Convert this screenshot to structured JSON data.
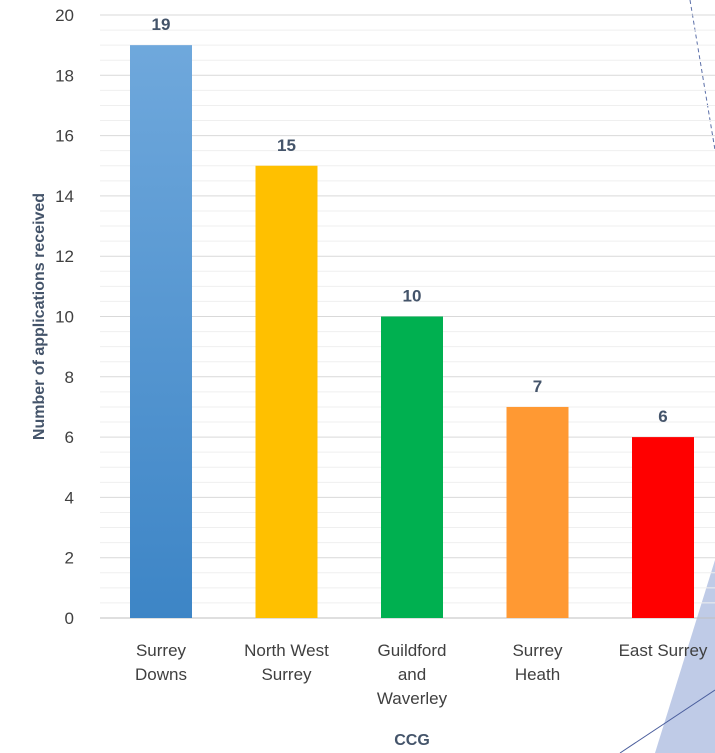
{
  "chart_data": {
    "type": "bar",
    "categories": [
      [
        "Surrey",
        "Downs"
      ],
      [
        "North West",
        "Surrey"
      ],
      [
        "Guildford",
        "and",
        "Waverley"
      ],
      [
        "Surrey",
        "Heath"
      ],
      [
        "East Surrey"
      ]
    ],
    "values": [
      19,
      15,
      10,
      7,
      6
    ],
    "data_labels": [
      "19",
      "15",
      "10",
      "7",
      "6"
    ],
    "xlabel": "CCG",
    "ylabel": "Number of applications received",
    "ylim": [
      0,
      20
    ],
    "yticks": [
      0,
      2,
      4,
      6,
      8,
      10,
      12,
      14,
      16,
      18,
      20
    ],
    "grid": true,
    "legend": "none",
    "bar_colors": [
      "#5b9bd5",
      "#ffc000",
      "#00b050",
      "#ff9933",
      "#ff0000"
    ]
  }
}
